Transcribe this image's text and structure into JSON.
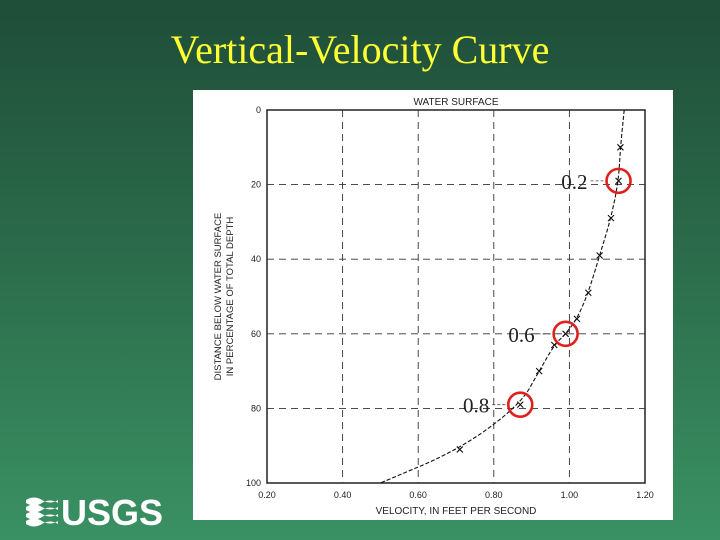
{
  "slide": {
    "title": "Vertical-Velocity Curve"
  },
  "logo": {
    "text": "USGS"
  },
  "colors": {
    "title": "#ffff33",
    "callout": "#e0201b",
    "curve": "#111111"
  },
  "chart_data": {
    "type": "line",
    "title": "WATER SURFACE",
    "xlabel": "VELOCITY, IN FEET PER SECOND",
    "ylabel_lines": [
      "DISTANCE BELOW WATER SURFACE",
      "IN PERCENTAGE OF TOTAL DEPTH"
    ],
    "xlim": [
      0.2,
      1.2
    ],
    "ylim": [
      0,
      100
    ],
    "y_inverted": true,
    "x_ticks": [
      "0.20",
      "0.40",
      "0.60",
      "0.80",
      "1.00",
      "1.20"
    ],
    "y_ticks": [
      "0",
      "20",
      "40",
      "60",
      "80",
      "100"
    ],
    "grid": true,
    "series": [
      {
        "x": [
          1.135,
          1.13,
          1.11,
          1.08,
          1.05,
          1.02,
          0.99,
          0.96,
          0.92,
          0.87,
          0.71
        ],
        "y": [
          10,
          19,
          29,
          39,
          49,
          56,
          60,
          63,
          70,
          79,
          91
        ]
      }
    ],
    "annotations": [
      {
        "label": "0.2",
        "x": 1.13,
        "y": 19
      },
      {
        "label": "0.6",
        "x": 0.99,
        "y": 60
      },
      {
        "label": "0.8",
        "x": 0.87,
        "y": 79
      }
    ]
  }
}
